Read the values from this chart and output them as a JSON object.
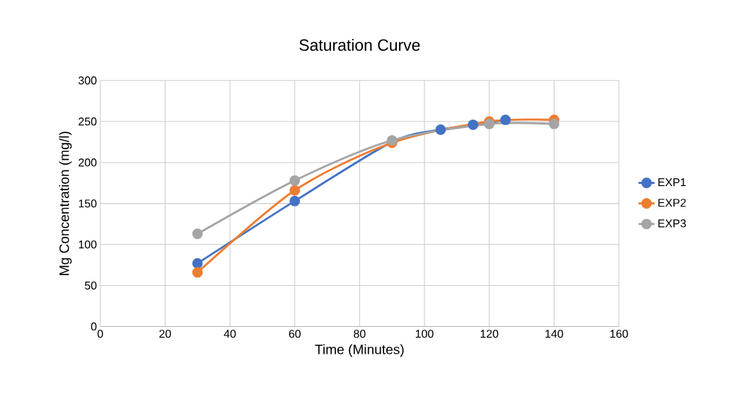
{
  "chart_data": {
    "type": "line",
    "title": "Saturation Curve",
    "xlabel": "Time (Minutes)",
    "ylabel": "Mg Concentration (mg/l)",
    "xlim": [
      0,
      160
    ],
    "ylim": [
      0,
      300
    ],
    "xticks": [
      0,
      20,
      40,
      60,
      80,
      100,
      120,
      140,
      160
    ],
    "yticks": [
      0,
      50,
      100,
      150,
      200,
      250,
      300
    ],
    "grid": true,
    "legend": "right",
    "marker": "circle",
    "line_style": "solid",
    "series": [
      {
        "name": "EXP1",
        "color": "#4472c4",
        "x": [
          30,
          60,
          90,
          105,
          115,
          125
        ],
        "values": [
          77,
          153,
          225,
          240,
          246,
          252
        ]
      },
      {
        "name": "EXP2",
        "color": "#ed7d31",
        "x": [
          30,
          60,
          90,
          120,
          140
        ],
        "values": [
          66,
          166,
          224,
          250,
          252
        ]
      },
      {
        "name": "EXP3",
        "color": "#a5a5a5",
        "x": [
          30,
          60,
          90,
          120,
          140
        ],
        "values": [
          113,
          178,
          227,
          247,
          247
        ]
      }
    ]
  }
}
